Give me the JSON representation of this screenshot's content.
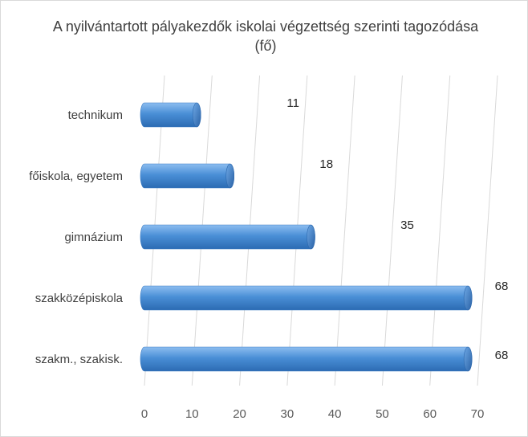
{
  "chart_data": {
    "type": "bar",
    "orientation": "horizontal",
    "title": "A nyilvántartott pályakezdők iskolai végzettség szerinti tagozódása (fő)",
    "categories": [
      "technikum",
      "főiskola, egyetem",
      "gimnázium",
      "szakközépiskola",
      "szakm., szakisk."
    ],
    "values": [
      11,
      18,
      35,
      68,
      68
    ],
    "xlim": [
      0,
      70
    ],
    "x_ticks": [
      0,
      10,
      20,
      30,
      40,
      50,
      60,
      70
    ],
    "grid": true,
    "legend": "none",
    "bar_color": "#4a8fd6"
  }
}
